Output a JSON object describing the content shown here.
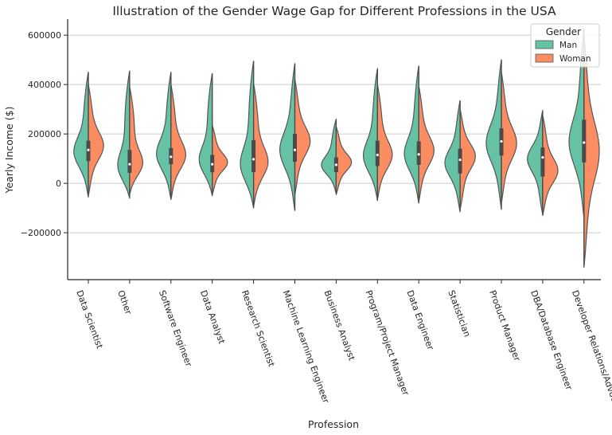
{
  "chart_data": {
    "type": "violin",
    "title": "Illustration of the Gender Wage Gap for Different Professions in the USA",
    "xlabel": "Profession",
    "ylabel": "Yearly Income ($)",
    "ylim": [
      -390000,
      665000
    ],
    "yticks": [
      -200000,
      0,
      200000,
      400000,
      600000
    ],
    "ytick_labels": [
      "−200000",
      "0",
      "200000",
      "400000",
      "600000"
    ],
    "grid": "horizontal",
    "categories": [
      "Data Scientist",
      "Other",
      "Software Engineer",
      "Data Analyst",
      "Research Scientist",
      "Machine Learning Engineer",
      "Business Analyst",
      "Program/Project Manager",
      "Data Engineer",
      "Statistician",
      "Product Manager",
      "DBA/Database Engineer",
      "Developer Relations/Advocacy"
    ],
    "legend": {
      "title": "Gender",
      "position": "top-right"
    },
    "series": [
      {
        "name": "Man",
        "color": "#66c2a5",
        "values": [
          {
            "min": -55000,
            "max": 450000,
            "q1": 90000,
            "median": 140000,
            "q3": 175000,
            "peak": 120000
          },
          {
            "min": -60000,
            "max": 455000,
            "q1": 45000,
            "median": 75000,
            "q3": 140000,
            "peak": 50000
          },
          {
            "min": -65000,
            "max": 450000,
            "q1": 80000,
            "median": 110000,
            "q3": 145000,
            "peak": 110000
          },
          {
            "min": -50000,
            "max": 445000,
            "q1": 45000,
            "median": 75000,
            "q3": 115000,
            "peak": 80000
          },
          {
            "min": -100000,
            "max": 495000,
            "q1": 40000,
            "median": 95000,
            "q3": 180000,
            "peak": 60000
          },
          {
            "min": -110000,
            "max": 485000,
            "q1": 90000,
            "median": 140000,
            "q3": 200000,
            "peak": 130000
          },
          {
            "min": -40000,
            "max": 260000,
            "q1": 45000,
            "median": 75000,
            "q3": 105000,
            "peak": 70000
          },
          {
            "min": -70000,
            "max": 465000,
            "q1": 70000,
            "median": 115000,
            "q3": 175000,
            "peak": 100000
          },
          {
            "min": -80000,
            "max": 475000,
            "q1": 75000,
            "median": 115000,
            "q3": 170000,
            "peak": 110000
          },
          {
            "min": -115000,
            "max": 335000,
            "q1": 50000,
            "median": 100000,
            "q3": 140000,
            "peak": 80000
          },
          {
            "min": -105000,
            "max": 500000,
            "q1": 115000,
            "median": 175000,
            "q3": 225000,
            "peak": 160000
          },
          {
            "min": -125000,
            "max": 295000,
            "q1": 35000,
            "median": 115000,
            "q3": 150000,
            "peak": 100000
          },
          {
            "min": -140000,
            "max": 625000,
            "q1": 90000,
            "median": 170000,
            "q3": 265000,
            "peak": 160000
          }
        ]
      },
      {
        "name": "Woman",
        "color": "#fc8d62",
        "values": [
          {
            "min": -50000,
            "max": 400000,
            "q1": 90000,
            "median": 130000,
            "q3": 170000,
            "peak": 150000
          },
          {
            "min": -45000,
            "max": 390000,
            "q1": 40000,
            "median": 80000,
            "q3": 130000,
            "peak": 70000
          },
          {
            "min": -65000,
            "max": 400000,
            "q1": 75000,
            "median": 105000,
            "q3": 140000,
            "peak": 110000
          },
          {
            "min": -45000,
            "max": 235000,
            "q1": 45000,
            "median": 80000,
            "q3": 115000,
            "peak": 85000
          },
          {
            "min": -95000,
            "max": 405000,
            "q1": 50000,
            "median": 100000,
            "q3": 170000,
            "peak": 80000
          },
          {
            "min": -45000,
            "max": 420000,
            "q1": 85000,
            "median": 130000,
            "q3": 200000,
            "peak": 170000
          },
          {
            "min": -45000,
            "max": 230000,
            "q1": 45000,
            "median": 75000,
            "q3": 105000,
            "peak": 85000
          },
          {
            "min": -65000,
            "max": 400000,
            "q1": 70000,
            "median": 115000,
            "q3": 170000,
            "peak": 110000
          },
          {
            "min": -75000,
            "max": 395000,
            "q1": 75000,
            "median": 120000,
            "q3": 170000,
            "peak": 130000
          },
          {
            "min": -105000,
            "max": 300000,
            "q1": 30000,
            "median": 90000,
            "q3": 140000,
            "peak": 110000
          },
          {
            "min": -80000,
            "max": 450000,
            "q1": 110000,
            "median": 165000,
            "q3": 220000,
            "peak": 160000
          },
          {
            "min": -130000,
            "max": 275000,
            "q1": 20000,
            "median": 95000,
            "q3": 140000,
            "peak": 50000
          },
          {
            "min": -340000,
            "max": 600000,
            "q1": 80000,
            "median": 160000,
            "q3": 250000,
            "peak": 130000
          }
        ]
      }
    ]
  }
}
